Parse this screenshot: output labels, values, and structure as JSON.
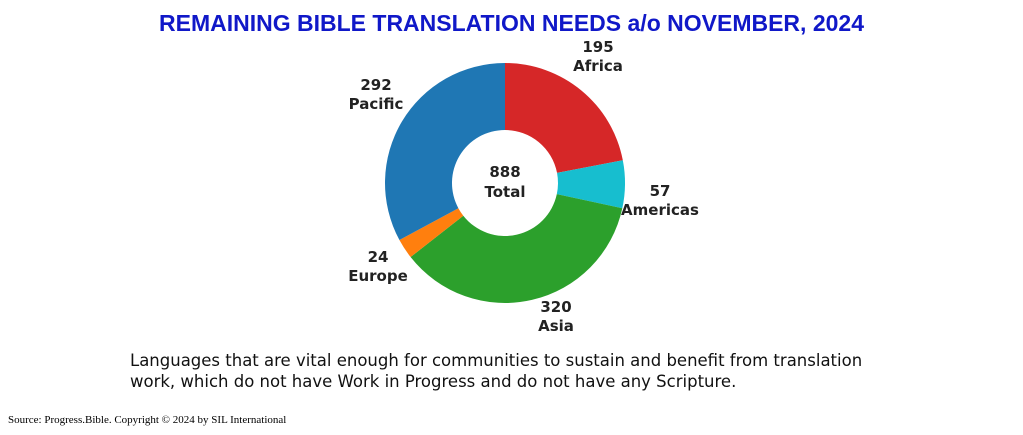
{
  "title": "REMAINING BIBLE TRANSLATION NEEDS a/o NOVEMBER, 2024",
  "chart_data": {
    "type": "pie",
    "variant": "donut",
    "total": {
      "value": "888",
      "label": "Total"
    },
    "slices": [
      {
        "name": "Africa",
        "value": 195,
        "color": "#d62728"
      },
      {
        "name": "Americas",
        "value": 57,
        "color": "#17becf"
      },
      {
        "name": "Asia",
        "value": 320,
        "color": "#2ca02c"
      },
      {
        "name": "Europe",
        "value": 24,
        "color": "#ff7f0e"
      },
      {
        "name": "Pacific",
        "value": 292,
        "color": "#1f77b4"
      }
    ]
  },
  "note": "Languages that are vital enough for communities to sustain and benefit from translation work, which do not have Work in Progress and do not have any Scripture.",
  "source": "Source: Progress.Bible. Copyright © 2024 by SIL International"
}
